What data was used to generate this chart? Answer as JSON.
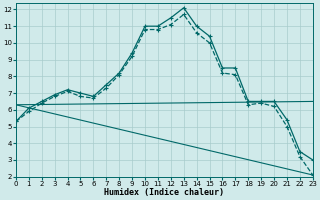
{
  "xlabel": "Humidex (Indice chaleur)",
  "bg_color": "#d0eaea",
  "grid_color": "#a8cccc",
  "line_color": "#006868",
  "xlim": [
    0,
    23
  ],
  "ylim": [
    2,
    12.4
  ],
  "yticks": [
    2,
    3,
    4,
    5,
    6,
    7,
    8,
    9,
    10,
    11,
    12
  ],
  "xticks": [
    0,
    1,
    2,
    3,
    4,
    5,
    6,
    7,
    8,
    9,
    10,
    11,
    12,
    13,
    14,
    15,
    16,
    17,
    18,
    19,
    20,
    21,
    22,
    23
  ],
  "series": [
    {
      "x": [
        0,
        1,
        2,
        3,
        4,
        5,
        6,
        7,
        8,
        9,
        10,
        11,
        12,
        13,
        14,
        15,
        16,
        17,
        18,
        19,
        20,
        21,
        22,
        23
      ],
      "y": [
        5.3,
        6.1,
        6.5,
        6.9,
        7.2,
        7.0,
        6.8,
        7.5,
        8.2,
        9.4,
        11.0,
        11.0,
        11.5,
        12.1,
        11.0,
        10.4,
        8.5,
        8.5,
        6.5,
        6.5,
        6.5,
        5.4,
        3.5,
        3.0
      ],
      "marker": "+",
      "ms": 3.5,
      "lw": 0.9,
      "ls": "-"
    },
    {
      "x": [
        0,
        1,
        2,
        3,
        4,
        5,
        6,
        7,
        8,
        9,
        10,
        11,
        12,
        13,
        14,
        15,
        16,
        17,
        18,
        19,
        20,
        21,
        22,
        23
      ],
      "y": [
        5.3,
        5.9,
        6.4,
        6.8,
        7.1,
        6.8,
        6.7,
        7.3,
        8.1,
        9.2,
        10.8,
        10.8,
        11.1,
        11.7,
        10.6,
        10.0,
        8.2,
        8.1,
        6.3,
        6.4,
        6.2,
        5.0,
        3.2,
        2.1
      ],
      "marker": "+",
      "ms": 3.5,
      "lw": 0.9,
      "ls": "--"
    },
    {
      "x": [
        0,
        23
      ],
      "y": [
        6.3,
        6.5
      ],
      "marker": "",
      "ms": 0,
      "lw": 0.8,
      "ls": "-"
    },
    {
      "x": [
        0,
        23
      ],
      "y": [
        6.3,
        2.1
      ],
      "marker": "",
      "ms": 0,
      "lw": 0.8,
      "ls": "-"
    }
  ]
}
